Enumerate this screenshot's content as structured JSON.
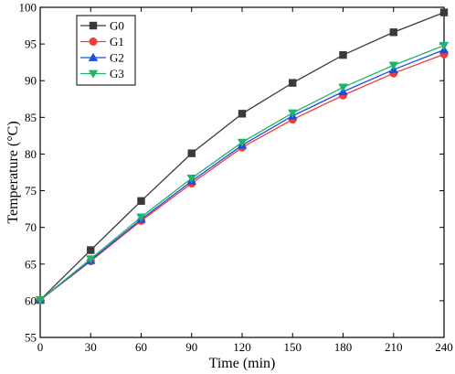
{
  "chart_data": {
    "type": "line",
    "title": "",
    "xlabel": "Time (min)",
    "ylabel": "Temperature (°C)",
    "xlim": [
      0,
      240
    ],
    "ylim": [
      55,
      100
    ],
    "x_ticks": [
      0,
      30,
      60,
      90,
      120,
      150,
      180,
      210,
      240
    ],
    "y_ticks": [
      55,
      60,
      65,
      70,
      75,
      80,
      85,
      90,
      95,
      100
    ],
    "grid": false,
    "legend_position": "top-left",
    "x": [
      0,
      30,
      60,
      90,
      120,
      150,
      180,
      210,
      240
    ],
    "series": [
      {
        "name": "G0",
        "color": "#3a3a3a",
        "marker": "square",
        "values": [
          60.1,
          66.9,
          73.6,
          80.1,
          85.5,
          89.7,
          93.5,
          96.6,
          99.3
        ]
      },
      {
        "name": "G1",
        "color": "#f03c3c",
        "marker": "circle",
        "values": [
          60.1,
          65.4,
          70.9,
          76.0,
          80.9,
          84.7,
          88.0,
          91.0,
          93.6
        ]
      },
      {
        "name": "G2",
        "color": "#1a4fe0",
        "marker": "triangle-up",
        "values": [
          60.1,
          65.5,
          71.1,
          76.3,
          81.2,
          85.2,
          88.5,
          91.5,
          94.2
        ]
      },
      {
        "name": "G3",
        "color": "#1fb46a",
        "marker": "triangle-down",
        "values": [
          60.1,
          65.7,
          71.4,
          76.7,
          81.6,
          85.6,
          89.1,
          92.1,
          94.8
        ]
      }
    ]
  }
}
